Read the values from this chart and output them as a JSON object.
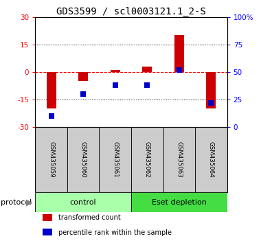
{
  "title": "GDS3599 / scl0003121.1_2-S",
  "samples": [
    "GSM435059",
    "GSM435060",
    "GSM435061",
    "GSM435062",
    "GSM435063",
    "GSM435064"
  ],
  "transformed_count": [
    -20,
    -5,
    1,
    3,
    20,
    -20
  ],
  "percentile_rank": [
    10,
    30,
    38,
    38,
    52,
    22
  ],
  "ylim_left": [
    -30,
    30
  ],
  "ylim_right": [
    0,
    100
  ],
  "yticks_left": [
    -30,
    -15,
    0,
    15,
    30
  ],
  "yticks_right": [
    0,
    25,
    50,
    75,
    100
  ],
  "yticklabels_right": [
    "0",
    "25",
    "50",
    "75",
    "100%"
  ],
  "dotted_lines": [
    -15,
    15
  ],
  "bar_color": "#cc0000",
  "scatter_color": "#0000cc",
  "groups": [
    {
      "label": "control",
      "indices": [
        0,
        1,
        2
      ],
      "color": "#aaffaa"
    },
    {
      "label": "Eset depletion",
      "indices": [
        3,
        4,
        5
      ],
      "color": "#44dd44"
    }
  ],
  "protocol_label": "protocol",
  "legend": [
    {
      "label": "transformed count",
      "color": "#cc0000"
    },
    {
      "label": "percentile rank within the sample",
      "color": "#0000cc"
    }
  ],
  "background_color": "#ffffff",
  "sample_box_color": "#cccccc",
  "title_fontsize": 10,
  "tick_fontsize": 7.5,
  "label_fontsize": 8
}
